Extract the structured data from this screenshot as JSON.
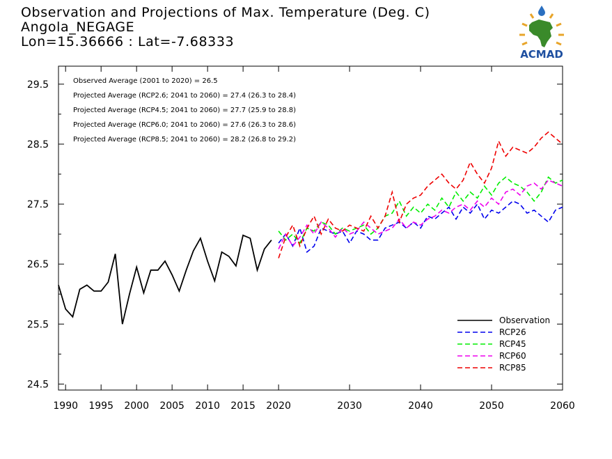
{
  "header": {
    "title": "Observation and Projections of Max. Temperature (Deg. C)",
    "station": "Angola_NEGAGE",
    "coords": "Lon=15.36666 : Lat=-7.68333"
  },
  "logo": {
    "text": "ACMAD"
  },
  "chart_data": {
    "type": "line",
    "xlim": [
      1989,
      2060
    ],
    "ylim": [
      24.4,
      29.8
    ],
    "x_ticks": [
      1990,
      1995,
      2000,
      2005,
      2010,
      2015,
      2020,
      2030,
      2040,
      2050,
      2060
    ],
    "y_ticks": [
      24.5,
      25.5,
      26.5,
      27.5,
      28.5,
      29.5
    ],
    "legend_position": "bottom-right",
    "annotations": [
      "Observed Average (2001 to 2020) = 26.5",
      "Projected Average (RCP2.6; 2041 to 2060) = 27.4 (26.3 to 28.4)",
      "Projected Average (RCP4.5; 2041 to 2060) = 27.7 (25.9 to 28.8)",
      "Projected Average (RCP6.0; 2041 to 2060) = 27.6 (26.3 to 28.6)",
      "Projected Average (RCP8.5; 2041 to 2060) = 28.2 (26.8 to 29.2)"
    ],
    "series": [
      {
        "name": "Observation",
        "color": "#000000",
        "dashed": false,
        "x": [
          1989,
          1990,
          1991,
          1992,
          1993,
          1994,
          1995,
          1996,
          1997,
          1998,
          1999,
          2000,
          2001,
          2002,
          2003,
          2004,
          2005,
          2006,
          2007,
          2008,
          2009,
          2010,
          2011,
          2012,
          2013,
          2014,
          2015,
          2016,
          2017,
          2018,
          2019
        ],
        "y": [
          26.15,
          25.75,
          25.62,
          26.08,
          26.15,
          26.05,
          26.05,
          26.2,
          26.67,
          25.5,
          26.0,
          26.45,
          26.02,
          26.4,
          26.4,
          26.55,
          26.32,
          26.05,
          26.4,
          26.72,
          26.93,
          26.55,
          26.22,
          26.7,
          26.63,
          26.47,
          26.98,
          26.93,
          26.4,
          26.75,
          26.9
        ]
      },
      {
        "name": "RCP26",
        "color": "#0000ee",
        "dashed": true,
        "x": [
          2020,
          2021,
          2022,
          2023,
          2024,
          2025,
          2026,
          2027,
          2028,
          2029,
          2030,
          2031,
          2032,
          2033,
          2034,
          2035,
          2036,
          2037,
          2038,
          2039,
          2040,
          2041,
          2042,
          2043,
          2044,
          2045,
          2046,
          2047,
          2048,
          2049,
          2050,
          2051,
          2052,
          2053,
          2054,
          2055,
          2056,
          2057,
          2058,
          2059,
          2060
        ],
        "y": [
          26.85,
          27.0,
          26.8,
          27.1,
          26.7,
          26.8,
          27.1,
          27.05,
          27.0,
          27.05,
          26.85,
          27.05,
          27.0,
          26.9,
          26.9,
          27.1,
          27.15,
          27.2,
          27.1,
          27.2,
          27.1,
          27.3,
          27.25,
          27.35,
          27.45,
          27.25,
          27.45,
          27.35,
          27.5,
          27.25,
          27.4,
          27.35,
          27.45,
          27.55,
          27.5,
          27.35,
          27.4,
          27.3,
          27.2,
          27.4,
          27.45
        ]
      },
      {
        "name": "RCP45",
        "color": "#00ee00",
        "dashed": true,
        "x": [
          2020,
          2021,
          2022,
          2023,
          2024,
          2025,
          2026,
          2027,
          2028,
          2029,
          2030,
          2031,
          2032,
          2033,
          2034,
          2035,
          2036,
          2037,
          2038,
          2039,
          2040,
          2041,
          2042,
          2043,
          2044,
          2045,
          2046,
          2047,
          2048,
          2049,
          2050,
          2051,
          2052,
          2053,
          2054,
          2055,
          2056,
          2057,
          2058,
          2059,
          2060
        ],
        "y": [
          27.05,
          26.9,
          27.0,
          26.85,
          27.1,
          27.05,
          27.2,
          27.15,
          27.0,
          27.1,
          27.05,
          27.1,
          27.15,
          27.0,
          27.1,
          27.3,
          27.35,
          27.55,
          27.3,
          27.45,
          27.35,
          27.5,
          27.4,
          27.6,
          27.45,
          27.7,
          27.55,
          27.7,
          27.6,
          27.8,
          27.65,
          27.85,
          27.95,
          27.85,
          27.8,
          27.7,
          27.55,
          27.7,
          27.95,
          27.85,
          27.9
        ]
      },
      {
        "name": "RCP60",
        "color": "#ee00ee",
        "dashed": true,
        "x": [
          2020,
          2021,
          2022,
          2023,
          2024,
          2025,
          2026,
          2027,
          2028,
          2029,
          2030,
          2031,
          2032,
          2033,
          2034,
          2035,
          2036,
          2037,
          2038,
          2039,
          2040,
          2041,
          2042,
          2043,
          2044,
          2045,
          2046,
          2047,
          2048,
          2049,
          2050,
          2051,
          2052,
          2053,
          2054,
          2055,
          2056,
          2057,
          2058,
          2059,
          2060
        ],
        "y": [
          26.75,
          27.0,
          26.8,
          26.95,
          27.15,
          27.0,
          27.2,
          27.1,
          26.95,
          27.1,
          27.0,
          27.05,
          27.2,
          27.1,
          27.0,
          27.05,
          27.1,
          27.25,
          27.1,
          27.2,
          27.15,
          27.25,
          27.3,
          27.4,
          27.35,
          27.45,
          27.5,
          27.4,
          27.55,
          27.45,
          27.6,
          27.5,
          27.7,
          27.75,
          27.65,
          27.8,
          27.85,
          27.75,
          27.9,
          27.85,
          27.8
        ]
      },
      {
        "name": "RCP85",
        "color": "#ee0000",
        "dashed": true,
        "x": [
          2020,
          2021,
          2022,
          2023,
          2024,
          2025,
          2026,
          2027,
          2028,
          2029,
          2030,
          2031,
          2032,
          2033,
          2034,
          2035,
          2036,
          2037,
          2038,
          2039,
          2040,
          2041,
          2042,
          2043,
          2044,
          2045,
          2046,
          2047,
          2048,
          2049,
          2050,
          2051,
          2052,
          2053,
          2054,
          2055,
          2056,
          2057,
          2058,
          2059,
          2060
        ],
        "y": [
          26.6,
          26.95,
          27.15,
          26.8,
          27.1,
          27.3,
          27.0,
          27.25,
          27.1,
          27.05,
          27.15,
          27.1,
          27.05,
          27.3,
          27.1,
          27.3,
          27.7,
          27.2,
          27.5,
          27.6,
          27.65,
          27.8,
          27.9,
          28.0,
          27.85,
          27.75,
          27.9,
          28.2,
          28.0,
          27.85,
          28.1,
          28.55,
          28.3,
          28.45,
          28.4,
          28.35,
          28.45,
          28.6,
          28.7,
          28.6,
          28.5
        ]
      }
    ]
  }
}
